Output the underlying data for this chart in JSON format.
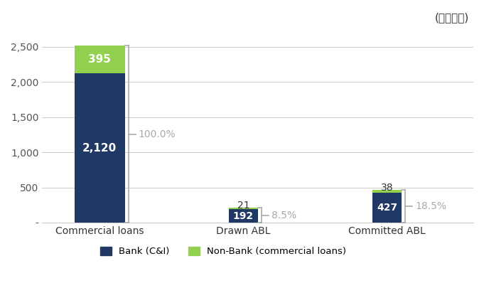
{
  "categories": [
    "Commercial loans",
    "Drawn ABL",
    "Committed ABL"
  ],
  "bank_values": [
    2120,
    192,
    427
  ],
  "nonbank_values": [
    395,
    21,
    38
  ],
  "bank_color": "#1F3864",
  "nonbank_color": "#92D050",
  "bar_width": [
    0.35,
    0.2,
    0.2
  ],
  "bar_positions": [
    0,
    1,
    2
  ],
  "ylim": [
    0,
    2700
  ],
  "yticks": [
    0,
    500,
    1000,
    1500,
    2000,
    2500
  ],
  "ytick_labels": [
    "-",
    "500",
    "1,000",
    "1,500",
    "2,000",
    "2,500"
  ],
  "unit_label": "(십억달러)",
  "bracket_texts": [
    "100.0%",
    "8.5%",
    "18.5%"
  ],
  "legend_labels": [
    "Bank (C&I)",
    "Non-Bank (commercial loans)"
  ],
  "background_color": "#FFFFFF",
  "text_color_white": "#FFFFFF",
  "text_color_dark": "#333333",
  "bracket_color": "#AAAAAA"
}
